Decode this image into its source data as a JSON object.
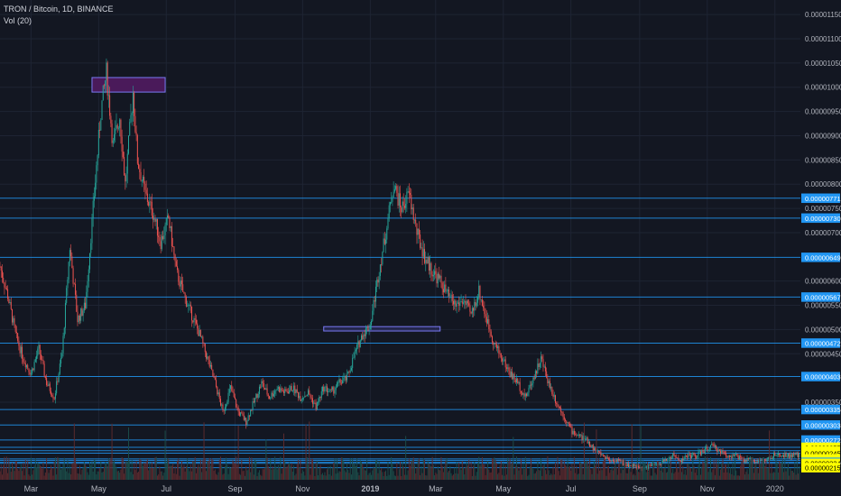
{
  "header": {
    "symbol_line": "TRON / Bitcoin, 1D, BINANCE",
    "volume_label": "Vol (20)"
  },
  "colors": {
    "background": "#131722",
    "grid": "#1e2433",
    "axis_text": "#b2b5be",
    "candle_up": "#26a69a",
    "candle_down": "#ef5350",
    "volume_up": "#1b4b48",
    "volume_down": "#5a2a2e",
    "hline": "#2196f3",
    "label_blue": "#2196f3",
    "label_yellow": "#ffff00",
    "box_purple": "#4a1a5a",
    "box_blue_border": "#7a7af5"
  },
  "chart_data": {
    "type": "candlestick",
    "title": "TRON / Bitcoin, 1D, BINANCE",
    "indicator": "Vol (20)",
    "ylim": [
      1.9e-06,
      1.18e-05
    ],
    "y_ticks": [
      "0.00001150",
      "0.00001100",
      "0.00001050",
      "0.00001000",
      "0.00000950",
      "0.00000900",
      "0.00000850",
      "0.00000800",
      "0.00000750",
      "0.00000700",
      "0.00000600",
      "0.00000550",
      "0.00000500",
      "0.00000450",
      "0.00000350"
    ],
    "x_ticks": [
      "Mar",
      "May",
      "Jul",
      "Sep",
      "Nov",
      "2019",
      "Mar",
      "May",
      "Jul",
      "Sep",
      "Nov",
      "2020"
    ],
    "x_tick_bold": "2019",
    "price_path": [
      [
        "2018-02-01",
        6.3e-06
      ],
      [
        "2018-02-08",
        5.7e-06
      ],
      [
        "2018-02-15",
        4.9e-06
      ],
      [
        "2018-02-22",
        4.4e-06
      ],
      [
        "2018-03-01",
        4.1e-06
      ],
      [
        "2018-03-08",
        4.6e-06
      ],
      [
        "2018-03-15",
        3.9e-06
      ],
      [
        "2018-03-22",
        3.6e-06
      ],
      [
        "2018-03-29",
        4.5e-06
      ],
      [
        "2018-04-05",
        6.7e-06
      ],
      [
        "2018-04-12",
        5.2e-06
      ],
      [
        "2018-04-19",
        5.5e-06
      ],
      [
        "2018-04-26",
        7.5e-06
      ],
      [
        "2018-05-03",
        9.5e-06
      ],
      [
        "2018-05-08",
        1.03e-05
      ],
      [
        "2018-05-14",
        8.8e-06
      ],
      [
        "2018-05-20",
        9.4e-06
      ],
      [
        "2018-05-25",
        8e-06
      ],
      [
        "2018-06-01",
        9.9e-06
      ],
      [
        "2018-06-05",
        8.5e-06
      ],
      [
        "2018-06-12",
        7.8e-06
      ],
      [
        "2018-06-19",
        7.4e-06
      ],
      [
        "2018-06-26",
        6.8e-06
      ],
      [
        "2018-07-03",
        7.3e-06
      ],
      [
        "2018-07-10",
        6.2e-06
      ],
      [
        "2018-07-17",
        5.7e-06
      ],
      [
        "2018-07-24",
        5.3e-06
      ],
      [
        "2018-07-31",
        4.9e-06
      ],
      [
        "2018-08-07",
        4.4e-06
      ],
      [
        "2018-08-14",
        3.9e-06
      ],
      [
        "2018-08-21",
        3.3e-06
      ],
      [
        "2018-08-28",
        3.8e-06
      ],
      [
        "2018-09-04",
        3.3e-06
      ],
      [
        "2018-09-11",
        3.1e-06
      ],
      [
        "2018-09-18",
        3.5e-06
      ],
      [
        "2018-09-25",
        3.9e-06
      ],
      [
        "2018-10-02",
        3.6e-06
      ],
      [
        "2018-10-09",
        3.8e-06
      ],
      [
        "2018-10-16",
        3.7e-06
      ],
      [
        "2018-10-23",
        3.8e-06
      ],
      [
        "2018-10-30",
        3.6e-06
      ],
      [
        "2018-11-06",
        3.7e-06
      ],
      [
        "2018-11-13",
        3.4e-06
      ],
      [
        "2018-11-20",
        3.8e-06
      ],
      [
        "2018-11-27",
        3.7e-06
      ],
      [
        "2018-12-04",
        3.9e-06
      ],
      [
        "2018-12-11",
        4e-06
      ],
      [
        "2018-12-18",
        4.5e-06
      ],
      [
        "2018-12-25",
        4.9e-06
      ],
      [
        "2019-01-01",
        5.1e-06
      ],
      [
        "2019-01-08",
        6.1e-06
      ],
      [
        "2019-01-15",
        7e-06
      ],
      [
        "2019-01-22",
        8e-06
      ],
      [
        "2019-01-29",
        7.5e-06
      ],
      [
        "2019-02-05",
        7.8e-06
      ],
      [
        "2019-02-12",
        7e-06
      ],
      [
        "2019-02-19",
        6.5e-06
      ],
      [
        "2019-02-26",
        6.2e-06
      ],
      [
        "2019-03-05",
        6e-06
      ],
      [
        "2019-03-12",
        5.7e-06
      ],
      [
        "2019-03-19",
        5.5e-06
      ],
      [
        "2019-03-26",
        5.6e-06
      ],
      [
        "2019-04-02",
        5.3e-06
      ],
      [
        "2019-04-09",
        5.8e-06
      ],
      [
        "2019-04-16",
        5.2e-06
      ],
      [
        "2019-04-23",
        4.7e-06
      ],
      [
        "2019-04-30",
        4.4e-06
      ],
      [
        "2019-05-07",
        4.1e-06
      ],
      [
        "2019-05-14",
        3.9e-06
      ],
      [
        "2019-05-21",
        3.6e-06
      ],
      [
        "2019-05-28",
        4e-06
      ],
      [
        "2019-06-04",
        4.4e-06
      ],
      [
        "2019-06-11",
        3.9e-06
      ],
      [
        "2019-06-18",
        3.5e-06
      ],
      [
        "2019-06-25",
        3.2e-06
      ],
      [
        "2019-07-02",
        2.9e-06
      ],
      [
        "2019-07-09",
        2.8e-06
      ],
      [
        "2019-07-16",
        2.7e-06
      ],
      [
        "2019-07-23",
        2.5e-06
      ],
      [
        "2019-07-30",
        2.4e-06
      ],
      [
        "2019-08-06",
        2.3e-06
      ],
      [
        "2019-08-13",
        2.3e-06
      ],
      [
        "2019-08-20",
        2.2e-06
      ],
      [
        "2019-08-27",
        2.2e-06
      ],
      [
        "2019-09-03",
        2.1e-06
      ],
      [
        "2019-09-10",
        2.2e-06
      ],
      [
        "2019-09-17",
        2.2e-06
      ],
      [
        "2019-09-24",
        2.3e-06
      ],
      [
        "2019-10-01",
        2.4e-06
      ],
      [
        "2019-10-08",
        2.3e-06
      ],
      [
        "2019-10-15",
        2.4e-06
      ],
      [
        "2019-10-22",
        2.4e-06
      ],
      [
        "2019-10-29",
        2.5e-06
      ],
      [
        "2019-11-05",
        2.6e-06
      ],
      [
        "2019-11-12",
        2.5e-06
      ],
      [
        "2019-11-19",
        2.4e-06
      ],
      [
        "2019-11-26",
        2.4e-06
      ],
      [
        "2019-12-03",
        2.3e-06
      ],
      [
        "2019-12-10",
        2.3e-06
      ],
      [
        "2019-12-17",
        2.3e-06
      ],
      [
        "2019-12-24",
        2.3e-06
      ],
      [
        "2019-12-31",
        2.4e-06
      ],
      [
        "2020-01-07",
        2.4e-06
      ],
      [
        "2020-01-14",
        2.4e-06
      ]
    ],
    "horizontal_levels": [
      {
        "price": 7.71e-06,
        "label": "0.00000771",
        "style": "blue"
      },
      {
        "price": 7.3e-06,
        "label": "0.00000730",
        "style": "blue"
      },
      {
        "price": 6.49e-06,
        "label": "0.00000649",
        "style": "blue"
      },
      {
        "price": 5.67e-06,
        "label": "0.00000567",
        "style": "blue"
      },
      {
        "price": 4.72e-06,
        "label": "0.00000472",
        "style": "blue"
      },
      {
        "price": 4.03e-06,
        "label": "0.00000403",
        "style": "blue"
      },
      {
        "price": 3.35e-06,
        "label": "0.00000335",
        "style": "blue"
      },
      {
        "price": 3.03e-06,
        "label": "0.00000303",
        "style": "blue"
      },
      {
        "price": 2.72e-06,
        "label": "0.00000272",
        "style": "blue"
      },
      {
        "price": 2.57e-06,
        "label": "0.00000257",
        "style": "yellow"
      },
      {
        "price": 2.5e-06,
        "label": "0.00000250",
        "style": "yellow"
      },
      {
        "price": 2.45e-06,
        "label": "0.00000245",
        "style": "yellow"
      },
      {
        "price": 2.33e-06,
        "label": "0.00000233",
        "style": "yellow"
      },
      {
        "price": 2.3e-06,
        "label": "0.00000230",
        "style": "yellow"
      },
      {
        "price": 2.26e-06,
        "label": "0.00000226",
        "style": "blue"
      },
      {
        "price": 2.24e-06,
        "label": "0.00000224",
        "style": "yellow"
      },
      {
        "price": 2.15e-06,
        "label": "0.00000215",
        "style": "yellow"
      }
    ],
    "zones": [
      {
        "start": "2018-04-25",
        "end": "2018-06-30",
        "top": 1.02e-05,
        "bottom": 9.9e-06,
        "style": "purple"
      },
      {
        "start": "2018-11-20",
        "end": "2019-03-05",
        "top": 5.06e-06,
        "bottom": 4.97e-06,
        "style": "blue"
      }
    ],
    "x_range": [
      "2018-02-01",
      "2020-01-24"
    ]
  }
}
